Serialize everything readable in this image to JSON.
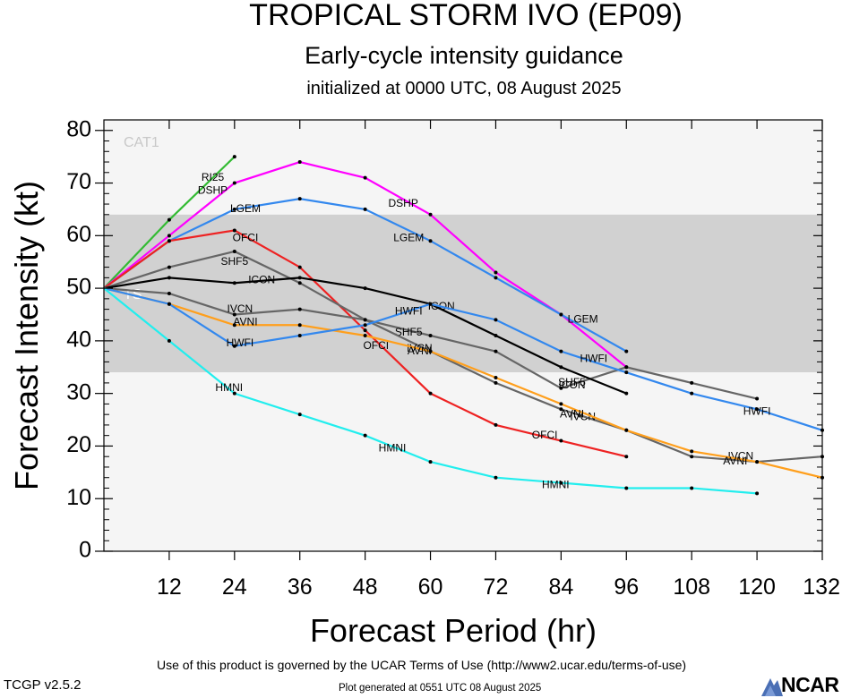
{
  "header": {
    "title": "TROPICAL STORM IVO (EP09)",
    "subtitle": "Early-cycle intensity guidance",
    "init": "initialized at 0000 UTC, 08 August 2025"
  },
  "footer": {
    "terms": "Use of this product is governed by the UCAR Terms of Use (http://www2.ucar.edu/terms-of-use)",
    "version": "TCGP v2.5.2",
    "generated": "Plot generated at 0551 UTC   08 August 2025",
    "logo": "NCAR"
  },
  "chart_data": {
    "type": "line",
    "xlabel": "Forecast Period (hr)",
    "ylabel": "Forecast Intensity (kt)",
    "xlim": [
      0,
      132
    ],
    "ylim": [
      0,
      82
    ],
    "xticks": [
      12,
      24,
      36,
      48,
      60,
      72,
      84,
      96,
      108,
      120,
      132
    ],
    "yticks": [
      0,
      10,
      20,
      30,
      40,
      50,
      60,
      70,
      80
    ],
    "bands": [
      {
        "label": "CAT1",
        "from": 64,
        "to": 82,
        "color": "#f5f5f5"
      },
      {
        "label": "TS",
        "from": 34,
        "to": 64,
        "color": "#d1d1d1"
      },
      {
        "label": "",
        "from": 0,
        "to": 34,
        "color": "#f5f5f5"
      }
    ],
    "series": [
      {
        "name": "RI25",
        "color": "#33bb33",
        "labels": [
          [
            20,
            71
          ]
        ],
        "points": [
          [
            0,
            50
          ],
          [
            12,
            63
          ],
          [
            24,
            75
          ]
        ]
      },
      {
        "name": "DSHP",
        "color": "#ff00ff",
        "labels": [
          [
            20,
            68.5
          ],
          [
            55,
            66
          ]
        ],
        "points": [
          [
            0,
            50
          ],
          [
            12,
            60
          ],
          [
            24,
            70
          ],
          [
            36,
            74
          ],
          [
            48,
            71
          ],
          [
            60,
            64
          ],
          [
            72,
            53
          ],
          [
            84,
            45
          ],
          [
            96,
            35
          ]
        ]
      },
      {
        "name": "LGEM",
        "color": "#3388ee",
        "labels": [
          [
            26,
            65
          ],
          [
            56,
            59.5
          ],
          [
            88,
            44
          ]
        ],
        "points": [
          [
            0,
            50
          ],
          [
            12,
            59
          ],
          [
            24,
            65
          ],
          [
            36,
            67
          ],
          [
            48,
            65
          ],
          [
            60,
            59
          ],
          [
            72,
            52
          ],
          [
            84,
            45
          ],
          [
            96,
            38
          ]
        ]
      },
      {
        "name": "OFCI",
        "color": "#ee2222",
        "labels": [
          [
            26,
            59.5
          ],
          [
            50,
            39
          ],
          [
            81,
            22
          ]
        ],
        "points": [
          [
            0,
            50
          ],
          [
            12,
            59
          ],
          [
            24,
            61
          ],
          [
            36,
            54
          ],
          [
            48,
            42
          ],
          [
            60,
            30
          ],
          [
            72,
            24
          ],
          [
            84,
            21
          ],
          [
            96,
            18
          ]
        ]
      },
      {
        "name": "SHF5",
        "color": "#666666",
        "labels": [
          [
            24,
            55
          ],
          [
            56,
            41.5
          ],
          [
            86,
            32
          ]
        ],
        "points": [
          [
            0,
            50
          ],
          [
            12,
            54
          ],
          [
            24,
            57
          ],
          [
            36,
            51
          ],
          [
            48,
            44
          ],
          [
            60,
            41
          ],
          [
            72,
            38
          ],
          [
            84,
            31
          ],
          [
            96,
            35
          ],
          [
            108,
            32
          ],
          [
            120,
            29
          ]
        ]
      },
      {
        "name": "ICON",
        "color": "#000000",
        "labels": [
          [
            29,
            51.5
          ],
          [
            62,
            46.5
          ],
          [
            86,
            31.5
          ]
        ],
        "points": [
          [
            0,
            50
          ],
          [
            12,
            52
          ],
          [
            24,
            51
          ],
          [
            36,
            52
          ],
          [
            48,
            50
          ],
          [
            60,
            47
          ],
          [
            72,
            41
          ],
          [
            84,
            35
          ],
          [
            96,
            30
          ]
        ]
      },
      {
        "name": "IVCN",
        "color": "#666666",
        "labels": [
          [
            25,
            46
          ],
          [
            58,
            38.5
          ],
          [
            88,
            25.5
          ],
          [
            117,
            18
          ]
        ],
        "points": [
          [
            0,
            50
          ],
          [
            12,
            49
          ],
          [
            24,
            45
          ],
          [
            36,
            46
          ],
          [
            48,
            44
          ],
          [
            60,
            38
          ],
          [
            72,
            32
          ],
          [
            84,
            27
          ],
          [
            96,
            23
          ],
          [
            108,
            18
          ],
          [
            120,
            17
          ],
          [
            132,
            18
          ]
        ]
      },
      {
        "name": "AVNI",
        "color": "#ff9f1c",
        "labels": [
          [
            26,
            43.5
          ],
          [
            58,
            38
          ],
          [
            86,
            26
          ],
          [
            116,
            17
          ]
        ],
        "points": [
          [
            0,
            50
          ],
          [
            12,
            47
          ],
          [
            24,
            43
          ],
          [
            36,
            43
          ],
          [
            48,
            41
          ],
          [
            60,
            38
          ],
          [
            72,
            33
          ],
          [
            84,
            28
          ],
          [
            96,
            23
          ],
          [
            108,
            19
          ],
          [
            120,
            17
          ],
          [
            132,
            14
          ]
        ]
      },
      {
        "name": "HWFI",
        "color": "#3388ee",
        "labels": [
          [
            25,
            39.5
          ],
          [
            56,
            45.5
          ],
          [
            90,
            36.5
          ],
          [
            120,
            26.5
          ]
        ],
        "points": [
          [
            0,
            50
          ],
          [
            12,
            47
          ],
          [
            24,
            39
          ],
          [
            36,
            41
          ],
          [
            48,
            43
          ],
          [
            60,
            47
          ],
          [
            72,
            44
          ],
          [
            84,
            38
          ],
          [
            96,
            34
          ],
          [
            108,
            30
          ],
          [
            120,
            27
          ],
          [
            132,
            23
          ]
        ]
      },
      {
        "name": "HMNI",
        "color": "#22eeee",
        "labels": [
          [
            23,
            31
          ],
          [
            53,
            19.5
          ],
          [
            83,
            12.5
          ]
        ],
        "points": [
          [
            0,
            50
          ],
          [
            12,
            40
          ],
          [
            24,
            30
          ],
          [
            36,
            26
          ],
          [
            48,
            22
          ],
          [
            60,
            17
          ],
          [
            72,
            14
          ],
          [
            84,
            13
          ],
          [
            96,
            12
          ],
          [
            108,
            12
          ],
          [
            120,
            11
          ]
        ]
      }
    ]
  }
}
